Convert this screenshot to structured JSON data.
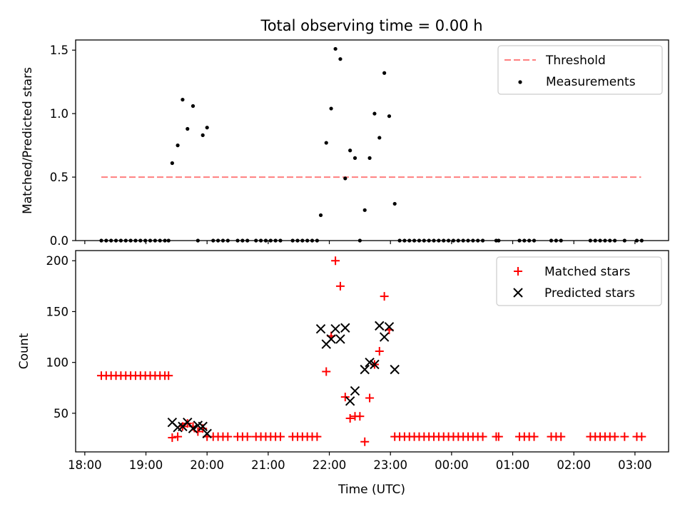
{
  "title": "Total observing time = 0.00 h",
  "x_tick_labels": [
    "18:00",
    "19:00",
    "20:00",
    "21:00",
    "22:00",
    "23:00",
    "00:00",
    "01:00",
    "02:00",
    "03:00"
  ],
  "x_ticks_h": [
    18,
    19,
    20,
    21,
    22,
    23,
    24,
    25,
    26,
    27
  ],
  "xlim": [
    17.85,
    27.55
  ],
  "colors": {
    "threshold": "#ff7f7f",
    "measurement": "#000000",
    "matched": "#ff0000",
    "predicted": "#000000"
  },
  "chart_data": [
    {
      "type": "scatter",
      "ylabel": "Matched/Predicted stars",
      "ylim": [
        0,
        1.58
      ],
      "y_ticks": [
        0.0,
        0.5,
        1.0,
        1.5
      ],
      "y_tick_labels": [
        "0.0",
        "0.5",
        "1.0",
        "1.5"
      ],
      "legend_position": "top-right",
      "threshold": {
        "name": "Threshold",
        "x_range": [
          18.27,
          27.1
        ],
        "y": 0.5
      },
      "series": [
        {
          "name": "Measurements",
          "points": [
            [
              18.27,
              0
            ],
            [
              18.35,
              0
            ],
            [
              18.43,
              0
            ],
            [
              18.51,
              0
            ],
            [
              18.59,
              0
            ],
            [
              18.67,
              0
            ],
            [
              18.75,
              0
            ],
            [
              18.83,
              0
            ],
            [
              18.91,
              0
            ],
            [
              18.99,
              0
            ],
            [
              19.07,
              0
            ],
            [
              19.15,
              0
            ],
            [
              19.23,
              0
            ],
            [
              19.31,
              0
            ],
            [
              19.37,
              0
            ],
            [
              19.43,
              0.61
            ],
            [
              19.52,
              0.75
            ],
            [
              19.6,
              1.11
            ],
            [
              19.68,
              0.88
            ],
            [
              19.77,
              1.06
            ],
            [
              19.85,
              0
            ],
            [
              19.93,
              0.83
            ],
            [
              20.0,
              0.89
            ],
            [
              20.1,
              0
            ],
            [
              20.18,
              0
            ],
            [
              20.26,
              0
            ],
            [
              20.34,
              0
            ],
            [
              20.5,
              0
            ],
            [
              20.58,
              0
            ],
            [
              20.66,
              0
            ],
            [
              20.8,
              0
            ],
            [
              20.88,
              0
            ],
            [
              20.96,
              0
            ],
            [
              21.04,
              0
            ],
            [
              21.12,
              0
            ],
            [
              21.2,
              0
            ],
            [
              21.4,
              0
            ],
            [
              21.48,
              0
            ],
            [
              21.56,
              0
            ],
            [
              21.64,
              0
            ],
            [
              21.72,
              0
            ],
            [
              21.8,
              0
            ],
            [
              21.86,
              0.2
            ],
            [
              21.95,
              0.77
            ],
            [
              22.03,
              1.04
            ],
            [
              22.1,
              1.51
            ],
            [
              22.18,
              1.43
            ],
            [
              22.26,
              0.49
            ],
            [
              22.34,
              0.71
            ],
            [
              22.42,
              0.65
            ],
            [
              22.5,
              0
            ],
            [
              22.58,
              0.24
            ],
            [
              22.66,
              0.65
            ],
            [
              22.74,
              1.0
            ],
            [
              22.82,
              0.81
            ],
            [
              22.9,
              1.32
            ],
            [
              22.98,
              0.98
            ],
            [
              23.07,
              0.29
            ],
            [
              23.15,
              0
            ],
            [
              23.23,
              0
            ],
            [
              23.31,
              0
            ],
            [
              23.39,
              0
            ],
            [
              23.47,
              0
            ],
            [
              23.55,
              0
            ],
            [
              23.63,
              0
            ],
            [
              23.71,
              0
            ],
            [
              23.79,
              0
            ],
            [
              23.87,
              0
            ],
            [
              23.95,
              0
            ],
            [
              24.03,
              0
            ],
            [
              24.11,
              0
            ],
            [
              24.19,
              0
            ],
            [
              24.27,
              0
            ],
            [
              24.35,
              0
            ],
            [
              24.43,
              0
            ],
            [
              24.51,
              0
            ],
            [
              24.73,
              0
            ],
            [
              24.77,
              0
            ],
            [
              25.11,
              0
            ],
            [
              25.19,
              0
            ],
            [
              25.27,
              0
            ],
            [
              25.35,
              0
            ],
            [
              25.63,
              0
            ],
            [
              25.71,
              0
            ],
            [
              25.79,
              0
            ],
            [
              26.27,
              0
            ],
            [
              26.35,
              0
            ],
            [
              26.43,
              0
            ],
            [
              26.51,
              0
            ],
            [
              26.59,
              0
            ],
            [
              26.67,
              0
            ],
            [
              26.83,
              0
            ],
            [
              27.03,
              0
            ],
            [
              27.11,
              0
            ]
          ]
        }
      ]
    },
    {
      "type": "scatter",
      "xlabel": "Time (UTC)",
      "ylabel": "Count",
      "ylim": [
        12,
        210
      ],
      "y_ticks": [
        50,
        100,
        150,
        200
      ],
      "y_tick_labels": [
        "50",
        "100",
        "150",
        "200"
      ],
      "legend_position": "top-right",
      "series": [
        {
          "name": "Matched stars",
          "points": [
            [
              18.27,
              87
            ],
            [
              18.35,
              87
            ],
            [
              18.43,
              87
            ],
            [
              18.51,
              87
            ],
            [
              18.59,
              87
            ],
            [
              18.67,
              87
            ],
            [
              18.75,
              87
            ],
            [
              18.83,
              87
            ],
            [
              18.91,
              87
            ],
            [
              18.99,
              87
            ],
            [
              19.07,
              87
            ],
            [
              19.15,
              87
            ],
            [
              19.23,
              87
            ],
            [
              19.31,
              87
            ],
            [
              19.37,
              87
            ],
            [
              19.43,
              26
            ],
            [
              19.52,
              27
            ],
            [
              19.6,
              37
            ],
            [
              19.68,
              40
            ],
            [
              19.77,
              37
            ],
            [
              19.85,
              32
            ],
            [
              19.93,
              35
            ],
            [
              20.0,
              27
            ],
            [
              20.1,
              27
            ],
            [
              20.18,
              27
            ],
            [
              20.26,
              27
            ],
            [
              20.34,
              27
            ],
            [
              20.5,
              27
            ],
            [
              20.58,
              27
            ],
            [
              20.66,
              27
            ],
            [
              20.8,
              27
            ],
            [
              20.88,
              27
            ],
            [
              20.96,
              27
            ],
            [
              21.04,
              27
            ],
            [
              21.12,
              27
            ],
            [
              21.2,
              27
            ],
            [
              21.4,
              27
            ],
            [
              21.48,
              27
            ],
            [
              21.56,
              27
            ],
            [
              21.64,
              27
            ],
            [
              21.72,
              27
            ],
            [
              21.8,
              27
            ],
            [
              21.95,
              91
            ],
            [
              22.03,
              126
            ],
            [
              22.1,
              200
            ],
            [
              22.18,
              175
            ],
            [
              22.26,
              66
            ],
            [
              22.34,
              45
            ],
            [
              22.42,
              47
            ],
            [
              22.5,
              47
            ],
            [
              22.58,
              22
            ],
            [
              22.66,
              65
            ],
            [
              22.74,
              98
            ],
            [
              22.82,
              111
            ],
            [
              22.9,
              165
            ],
            [
              22.98,
              132
            ],
            [
              23.07,
              27
            ],
            [
              23.15,
              27
            ],
            [
              23.23,
              27
            ],
            [
              23.31,
              27
            ],
            [
              23.39,
              27
            ],
            [
              23.47,
              27
            ],
            [
              23.55,
              27
            ],
            [
              23.63,
              27
            ],
            [
              23.71,
              27
            ],
            [
              23.79,
              27
            ],
            [
              23.87,
              27
            ],
            [
              23.95,
              27
            ],
            [
              24.03,
              27
            ],
            [
              24.11,
              27
            ],
            [
              24.19,
              27
            ],
            [
              24.27,
              27
            ],
            [
              24.35,
              27
            ],
            [
              24.43,
              27
            ],
            [
              24.51,
              27
            ],
            [
              24.73,
              27
            ],
            [
              24.77,
              27
            ],
            [
              25.11,
              27
            ],
            [
              25.19,
              27
            ],
            [
              25.27,
              27
            ],
            [
              25.35,
              27
            ],
            [
              25.63,
              27
            ],
            [
              25.71,
              27
            ],
            [
              25.79,
              27
            ],
            [
              26.27,
              27
            ],
            [
              26.35,
              27
            ],
            [
              26.43,
              27
            ],
            [
              26.51,
              27
            ],
            [
              26.59,
              27
            ],
            [
              26.67,
              27
            ],
            [
              26.83,
              27
            ],
            [
              27.03,
              27
            ],
            [
              27.11,
              27
            ]
          ]
        },
        {
          "name": "Predicted stars",
          "points": [
            [
              19.43,
              41
            ],
            [
              19.52,
              36
            ],
            [
              19.6,
              37
            ],
            [
              19.68,
              41
            ],
            [
              19.77,
              35
            ],
            [
              19.85,
              38
            ],
            [
              19.93,
              37
            ],
            [
              20.0,
              30
            ],
            [
              21.86,
              133
            ],
            [
              21.95,
              118
            ],
            [
              22.03,
              123
            ],
            [
              22.1,
              133
            ],
            [
              22.18,
              123
            ],
            [
              22.26,
              134
            ],
            [
              22.34,
              62
            ],
            [
              22.42,
              72
            ],
            [
              22.58,
              93
            ],
            [
              22.66,
              100
            ],
            [
              22.74,
              98
            ],
            [
              22.82,
              136
            ],
            [
              22.9,
              125
            ],
            [
              22.98,
              135
            ],
            [
              23.07,
              93
            ]
          ]
        }
      ]
    }
  ]
}
